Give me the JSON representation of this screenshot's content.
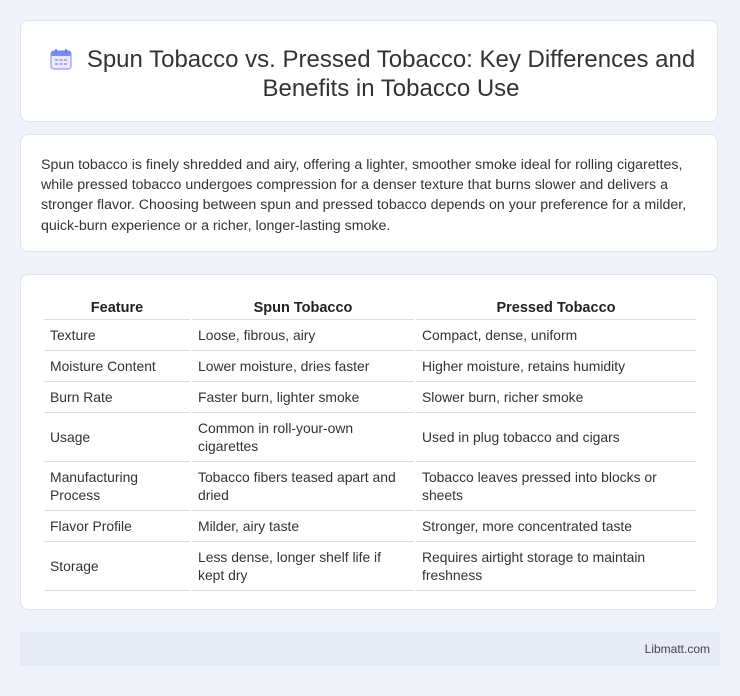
{
  "header": {
    "icon": "calendar-icon",
    "title": "Spun Tobacco vs. Pressed Tobacco: Key Differences and Benefits in Tobacco Use"
  },
  "intro": {
    "text": "Spun tobacco is finely shredded and airy, offering a lighter, smoother smoke ideal for rolling cigarettes, while pressed tobacco undergoes compression for a denser texture that burns slower and delivers a stronger flavor. Choosing between spun and pressed tobacco depends on your preference for a milder, quick-burn experience or a richer, longer-lasting smoke."
  },
  "table": {
    "headers": [
      "Feature",
      "Spun Tobacco",
      "Pressed Tobacco"
    ],
    "rows": [
      [
        "Texture",
        "Loose, fibrous, airy",
        "Compact, dense, uniform"
      ],
      [
        "Moisture Content",
        "Lower moisture, dries faster",
        "Higher moisture, retains humidity"
      ],
      [
        "Burn Rate",
        "Faster burn, lighter smoke",
        "Slower burn, richer smoke"
      ],
      [
        "Usage",
        "Common in roll-your-own cigarettes",
        "Used in plug tobacco and cigars"
      ],
      [
        "Manufacturing Process",
        "Tobacco fibers teased apart and dried",
        "Tobacco leaves pressed into blocks or sheets"
      ],
      [
        "Flavor Profile",
        "Milder, airy taste",
        "Stronger, more concentrated taste"
      ],
      [
        "Storage",
        "Less dense, longer shelf life if kept dry",
        "Requires airtight storage to maintain freshness"
      ]
    ]
  },
  "footer": {
    "brand": "Libmatt.com"
  },
  "colors": {
    "background": "#f0f3f9",
    "footer": "#e6ebf5",
    "icon_accent": "#7b8cf0"
  }
}
